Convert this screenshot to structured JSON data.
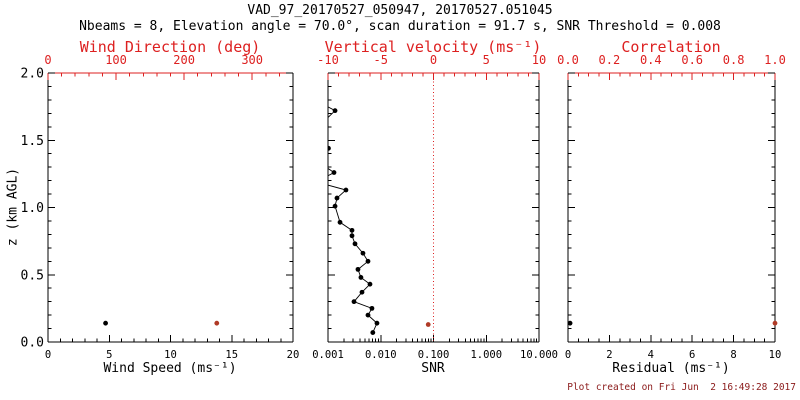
{
  "title": "VAD_97_20170527_050947, 20170527.051045",
  "subtitle": "Nbeams = 8, Elevation angle = 70.0°, scan duration = 91.7 s, SNR Threshold = 0.008",
  "footer": "Plot created on Fri Jun  2 16:49:28 2017",
  "colors": {
    "axis_red": "#dd2020",
    "data_red": "#b03a26",
    "black": "#000000",
    "footer_red": "#8b1a1a"
  },
  "y_axis": {
    "label": "z (km AGL)",
    "range": [
      0,
      2
    ],
    "major_ticks": [
      "0.0",
      "0.5",
      "1.0",
      "1.5",
      "2.0"
    ],
    "minor_step": 0.1
  },
  "chart_data": [
    {
      "id": "wind",
      "type": "scatter",
      "bottom_axis": {
        "label": "Wind Speed (ms⁻¹)",
        "range": [
          0,
          20
        ],
        "major_ticks": [
          "0",
          "5",
          "10",
          "15",
          "20"
        ],
        "minor_step": 1
      },
      "top_axis": {
        "label": "Wind Direction (deg)",
        "range": [
          0,
          360
        ],
        "major_ticks": [
          "0",
          "100",
          "200",
          "300"
        ],
        "minor_step": 20
      },
      "series": [
        {
          "name": "wind-speed",
          "axis": "bottom",
          "color": "black",
          "connect": false,
          "points": [
            {
              "x": 4.7,
              "z": 0.14
            }
          ]
        },
        {
          "name": "wind-direction",
          "axis": "top",
          "color": "red",
          "connect": false,
          "points": [
            {
              "x": 248,
              "z": 0.14
            }
          ]
        }
      ]
    },
    {
      "id": "snr",
      "type": "scatter-line",
      "bottom_axis": {
        "label": "SNR",
        "scale": "log",
        "range": [
          0.001,
          10
        ],
        "major_ticks": [
          "0.001",
          "0.010",
          "0.100",
          "1.000",
          "10.000"
        ]
      },
      "top_axis": {
        "label": "Vertical velocity (ms⁻¹)",
        "range": [
          -10,
          10
        ],
        "major_ticks": [
          "-10",
          "-5",
          "0",
          "5",
          "10"
        ],
        "minor_step": 1
      },
      "reference_line": {
        "axis": "top",
        "value": 0,
        "color": "red",
        "style": "dotted"
      },
      "series": [
        {
          "name": "snr-profile",
          "axis": "bottom",
          "color": "black",
          "connect": true,
          "clip": true,
          "points": [
            {
              "x": 0.0007,
              "z": 1.78
            },
            {
              "x": 0.00136,
              "z": 1.72
            },
            {
              "x": 0.00055,
              "z": 1.57
            },
            {
              "x": 0.00102,
              "z": 1.44
            },
            {
              "x": 0.00055,
              "z": 1.36
            },
            {
              "x": 0.0013,
              "z": 1.26
            },
            {
              "x": 0.0006,
              "z": 1.19
            },
            {
              "x": 0.00219,
              "z": 1.13
            },
            {
              "x": 0.00148,
              "z": 1.07
            },
            {
              "x": 0.00136,
              "z": 1.01
            },
            {
              "x": 0.00169,
              "z": 0.89
            },
            {
              "x": 0.00285,
              "z": 0.83
            },
            {
              "x": 0.00285,
              "z": 0.79
            },
            {
              "x": 0.00325,
              "z": 0.73
            },
            {
              "x": 0.0046,
              "z": 0.66
            },
            {
              "x": 0.00573,
              "z": 0.6
            },
            {
              "x": 0.0037,
              "z": 0.54
            },
            {
              "x": 0.00421,
              "z": 0.48
            },
            {
              "x": 0.00625,
              "z": 0.43
            },
            {
              "x": 0.00441,
              "z": 0.37
            },
            {
              "x": 0.00311,
              "z": 0.3
            },
            {
              "x": 0.00681,
              "z": 0.25
            },
            {
              "x": 0.00573,
              "z": 0.2
            },
            {
              "x": 0.00848,
              "z": 0.14
            },
            {
              "x": 0.00707,
              "z": 0.07
            }
          ]
        },
        {
          "name": "vertical-velocity",
          "axis": "top",
          "color": "red",
          "connect": false,
          "points": [
            {
              "x": -0.5,
              "z": 0.13
            }
          ]
        }
      ]
    },
    {
      "id": "residual",
      "type": "scatter",
      "bottom_axis": {
        "label": "Residual (ms⁻¹)",
        "range": [
          0,
          10
        ],
        "major_ticks": [
          "0",
          "2",
          "4",
          "6",
          "8",
          "10"
        ],
        "minor_step": 0.5
      },
      "top_axis": {
        "label": "Correlation",
        "range": [
          0,
          1
        ],
        "major_ticks": [
          "0.0",
          "0.2",
          "0.4",
          "0.6",
          "0.8",
          "1.0"
        ],
        "minor_step": 0.05
      },
      "series": [
        {
          "name": "residual",
          "axis": "bottom",
          "color": "black",
          "connect": false,
          "points": [
            {
              "x": 0.1,
              "z": 0.14
            }
          ]
        },
        {
          "name": "correlation",
          "axis": "top",
          "color": "red",
          "connect": false,
          "points": [
            {
              "x": 1.0,
              "z": 0.14
            }
          ]
        }
      ]
    }
  ]
}
